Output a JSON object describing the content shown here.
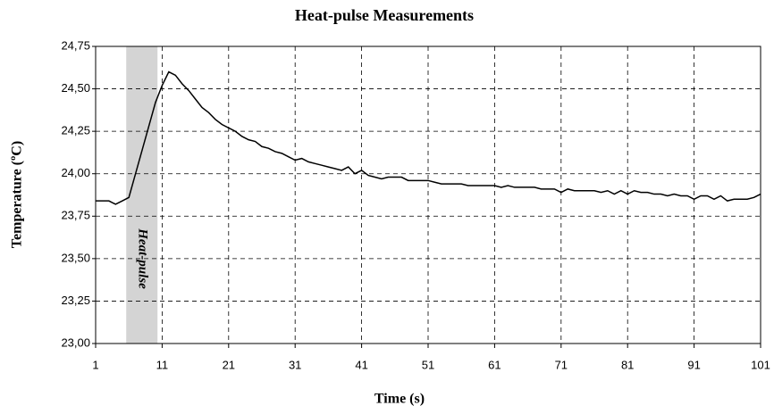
{
  "chart_data": {
    "type": "line",
    "title": "Heat-pulse Measurements",
    "x_label": "Time (s)",
    "y_label": "Temperature (ºC)",
    "x": [
      1,
      2,
      3,
      4,
      5,
      6,
      7,
      8,
      9,
      10,
      11,
      12,
      13,
      14,
      15,
      16,
      17,
      18,
      19,
      20,
      21,
      22,
      23,
      24,
      25,
      26,
      27,
      28,
      29,
      30,
      31,
      32,
      33,
      34,
      35,
      36,
      37,
      38,
      39,
      40,
      41,
      42,
      43,
      44,
      45,
      46,
      47,
      48,
      49,
      50,
      51,
      52,
      53,
      54,
      55,
      56,
      57,
      58,
      59,
      60,
      61,
      62,
      63,
      64,
      65,
      66,
      67,
      68,
      69,
      70,
      71,
      72,
      73,
      74,
      75,
      76,
      77,
      78,
      79,
      80,
      81,
      82,
      83,
      84,
      85,
      86,
      87,
      88,
      89,
      90,
      91,
      92,
      93,
      94,
      95,
      96,
      97,
      98,
      99,
      100,
      101
    ],
    "series": [
      {
        "color": "#000000",
        "values": [
          23.84,
          23.84,
          23.84,
          23.82,
          23.84,
          23.86,
          24.0,
          24.14,
          24.28,
          24.42,
          24.52,
          24.6,
          24.58,
          24.53,
          24.49,
          24.44,
          24.39,
          24.36,
          24.32,
          24.29,
          24.27,
          24.25,
          24.22,
          24.2,
          24.19,
          24.16,
          24.15,
          24.13,
          24.12,
          24.1,
          24.08,
          24.09,
          24.07,
          24.06,
          24.05,
          24.04,
          24.03,
          24.02,
          24.04,
          24.0,
          24.02,
          23.99,
          23.98,
          23.97,
          23.98,
          23.98,
          23.98,
          23.96,
          23.96,
          23.96,
          23.96,
          23.95,
          23.94,
          23.94,
          23.94,
          23.94,
          23.93,
          23.93,
          23.93,
          23.93,
          23.93,
          23.92,
          23.93,
          23.92,
          23.92,
          23.92,
          23.92,
          23.91,
          23.91,
          23.91,
          23.89,
          23.91,
          23.9,
          23.9,
          23.9,
          23.9,
          23.89,
          23.9,
          23.88,
          23.9,
          23.88,
          23.9,
          23.89,
          23.89,
          23.88,
          23.88,
          23.87,
          23.88,
          23.87,
          23.87,
          23.85,
          23.87,
          23.87,
          23.85,
          23.87,
          23.84,
          23.85,
          23.85,
          23.85,
          23.86,
          23.88
        ]
      }
    ],
    "annotations": [
      {
        "text": "Heat-pulse",
        "x_range": [
          5.6,
          10.3
        ],
        "color": "#d4d4d4"
      }
    ],
    "xlim": [
      1,
      101
    ],
    "xticks": [
      1,
      11,
      21,
      31,
      41,
      51,
      61,
      71,
      81,
      91,
      101
    ],
    "ylim": [
      23,
      24.75
    ],
    "yticks": [
      {
        "value": 23,
        "label": "23,00"
      },
      {
        "value": 23.25,
        "label": "23,25"
      },
      {
        "value": 23.5,
        "label": "23,50"
      },
      {
        "value": 23.75,
        "label": "23,75"
      },
      {
        "value": 24,
        "label": "24,00"
      },
      {
        "value": 24.25,
        "label": "24,25"
      },
      {
        "value": 24.5,
        "label": "24,50"
      },
      {
        "value": 24.75,
        "label": "24,75"
      }
    ],
    "grid": true
  }
}
